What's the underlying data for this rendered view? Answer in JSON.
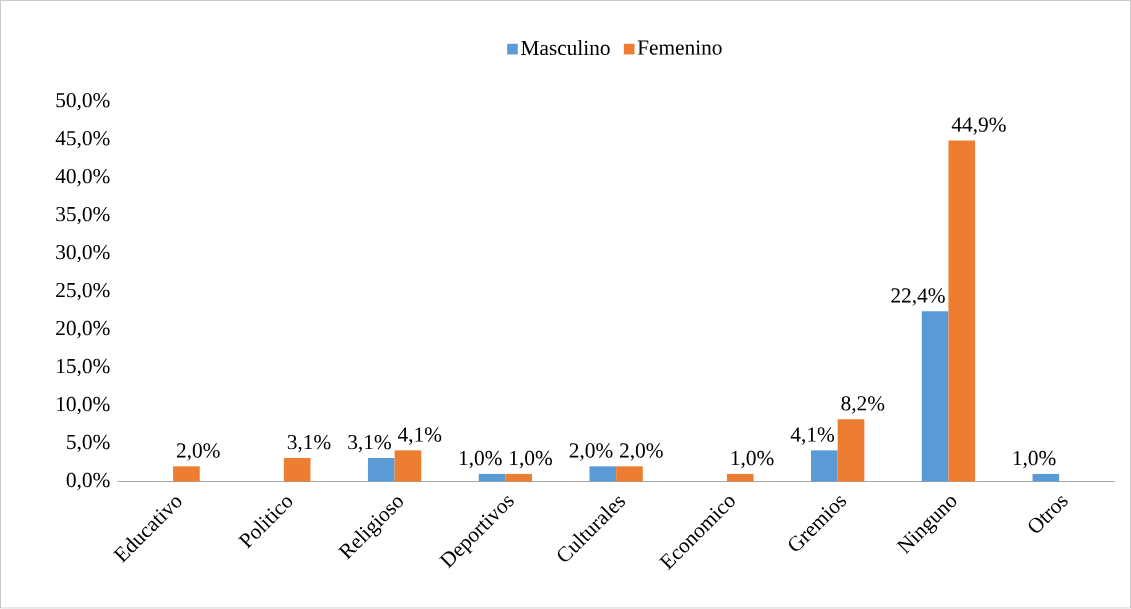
{
  "chart_data": {
    "type": "bar",
    "categories": [
      "Educativo",
      "Politico",
      "Religioso",
      "Deportivos",
      "Culturales",
      "Economico",
      "Gremios",
      "Ninguno",
      "Otros"
    ],
    "series": [
      {
        "name": "Masculino",
        "color": "#5b9bd5",
        "values": [
          null,
          null,
          3.1,
          1.0,
          2.0,
          null,
          4.1,
          22.4,
          1.0
        ],
        "value_labels": [
          null,
          null,
          "3,1%",
          "1,0%",
          "2,0%",
          null,
          "4,1%",
          "22,4%",
          "1,0%"
        ]
      },
      {
        "name": "Femenino",
        "color": "#ed7d31",
        "values": [
          2.0,
          3.1,
          4.1,
          1.0,
          2.0,
          1.0,
          8.2,
          44.9,
          null
        ],
        "value_labels": [
          "2,0%",
          "3,1%",
          "4,1%",
          "1,0%",
          "2,0%",
          "1,0%",
          "8,2%",
          "44,9%",
          null
        ]
      }
    ],
    "ylim": [
      0,
      50
    ],
    "yticks": [
      {
        "value": 0,
        "label": "0,0%"
      },
      {
        "value": 5,
        "label": "5,0%"
      },
      {
        "value": 10,
        "label": "10,0%"
      },
      {
        "value": 15,
        "label": "15,0%"
      },
      {
        "value": 20,
        "label": "20,0%"
      },
      {
        "value": 25,
        "label": "25,0%"
      },
      {
        "value": 30,
        "label": "30,0%"
      },
      {
        "value": 35,
        "label": "35,0%"
      },
      {
        "value": 40,
        "label": "40,0%"
      },
      {
        "value": 45,
        "label": "45,0%"
      },
      {
        "value": 50,
        "label": "50,0%"
      }
    ],
    "legend": "top",
    "grid": false
  }
}
